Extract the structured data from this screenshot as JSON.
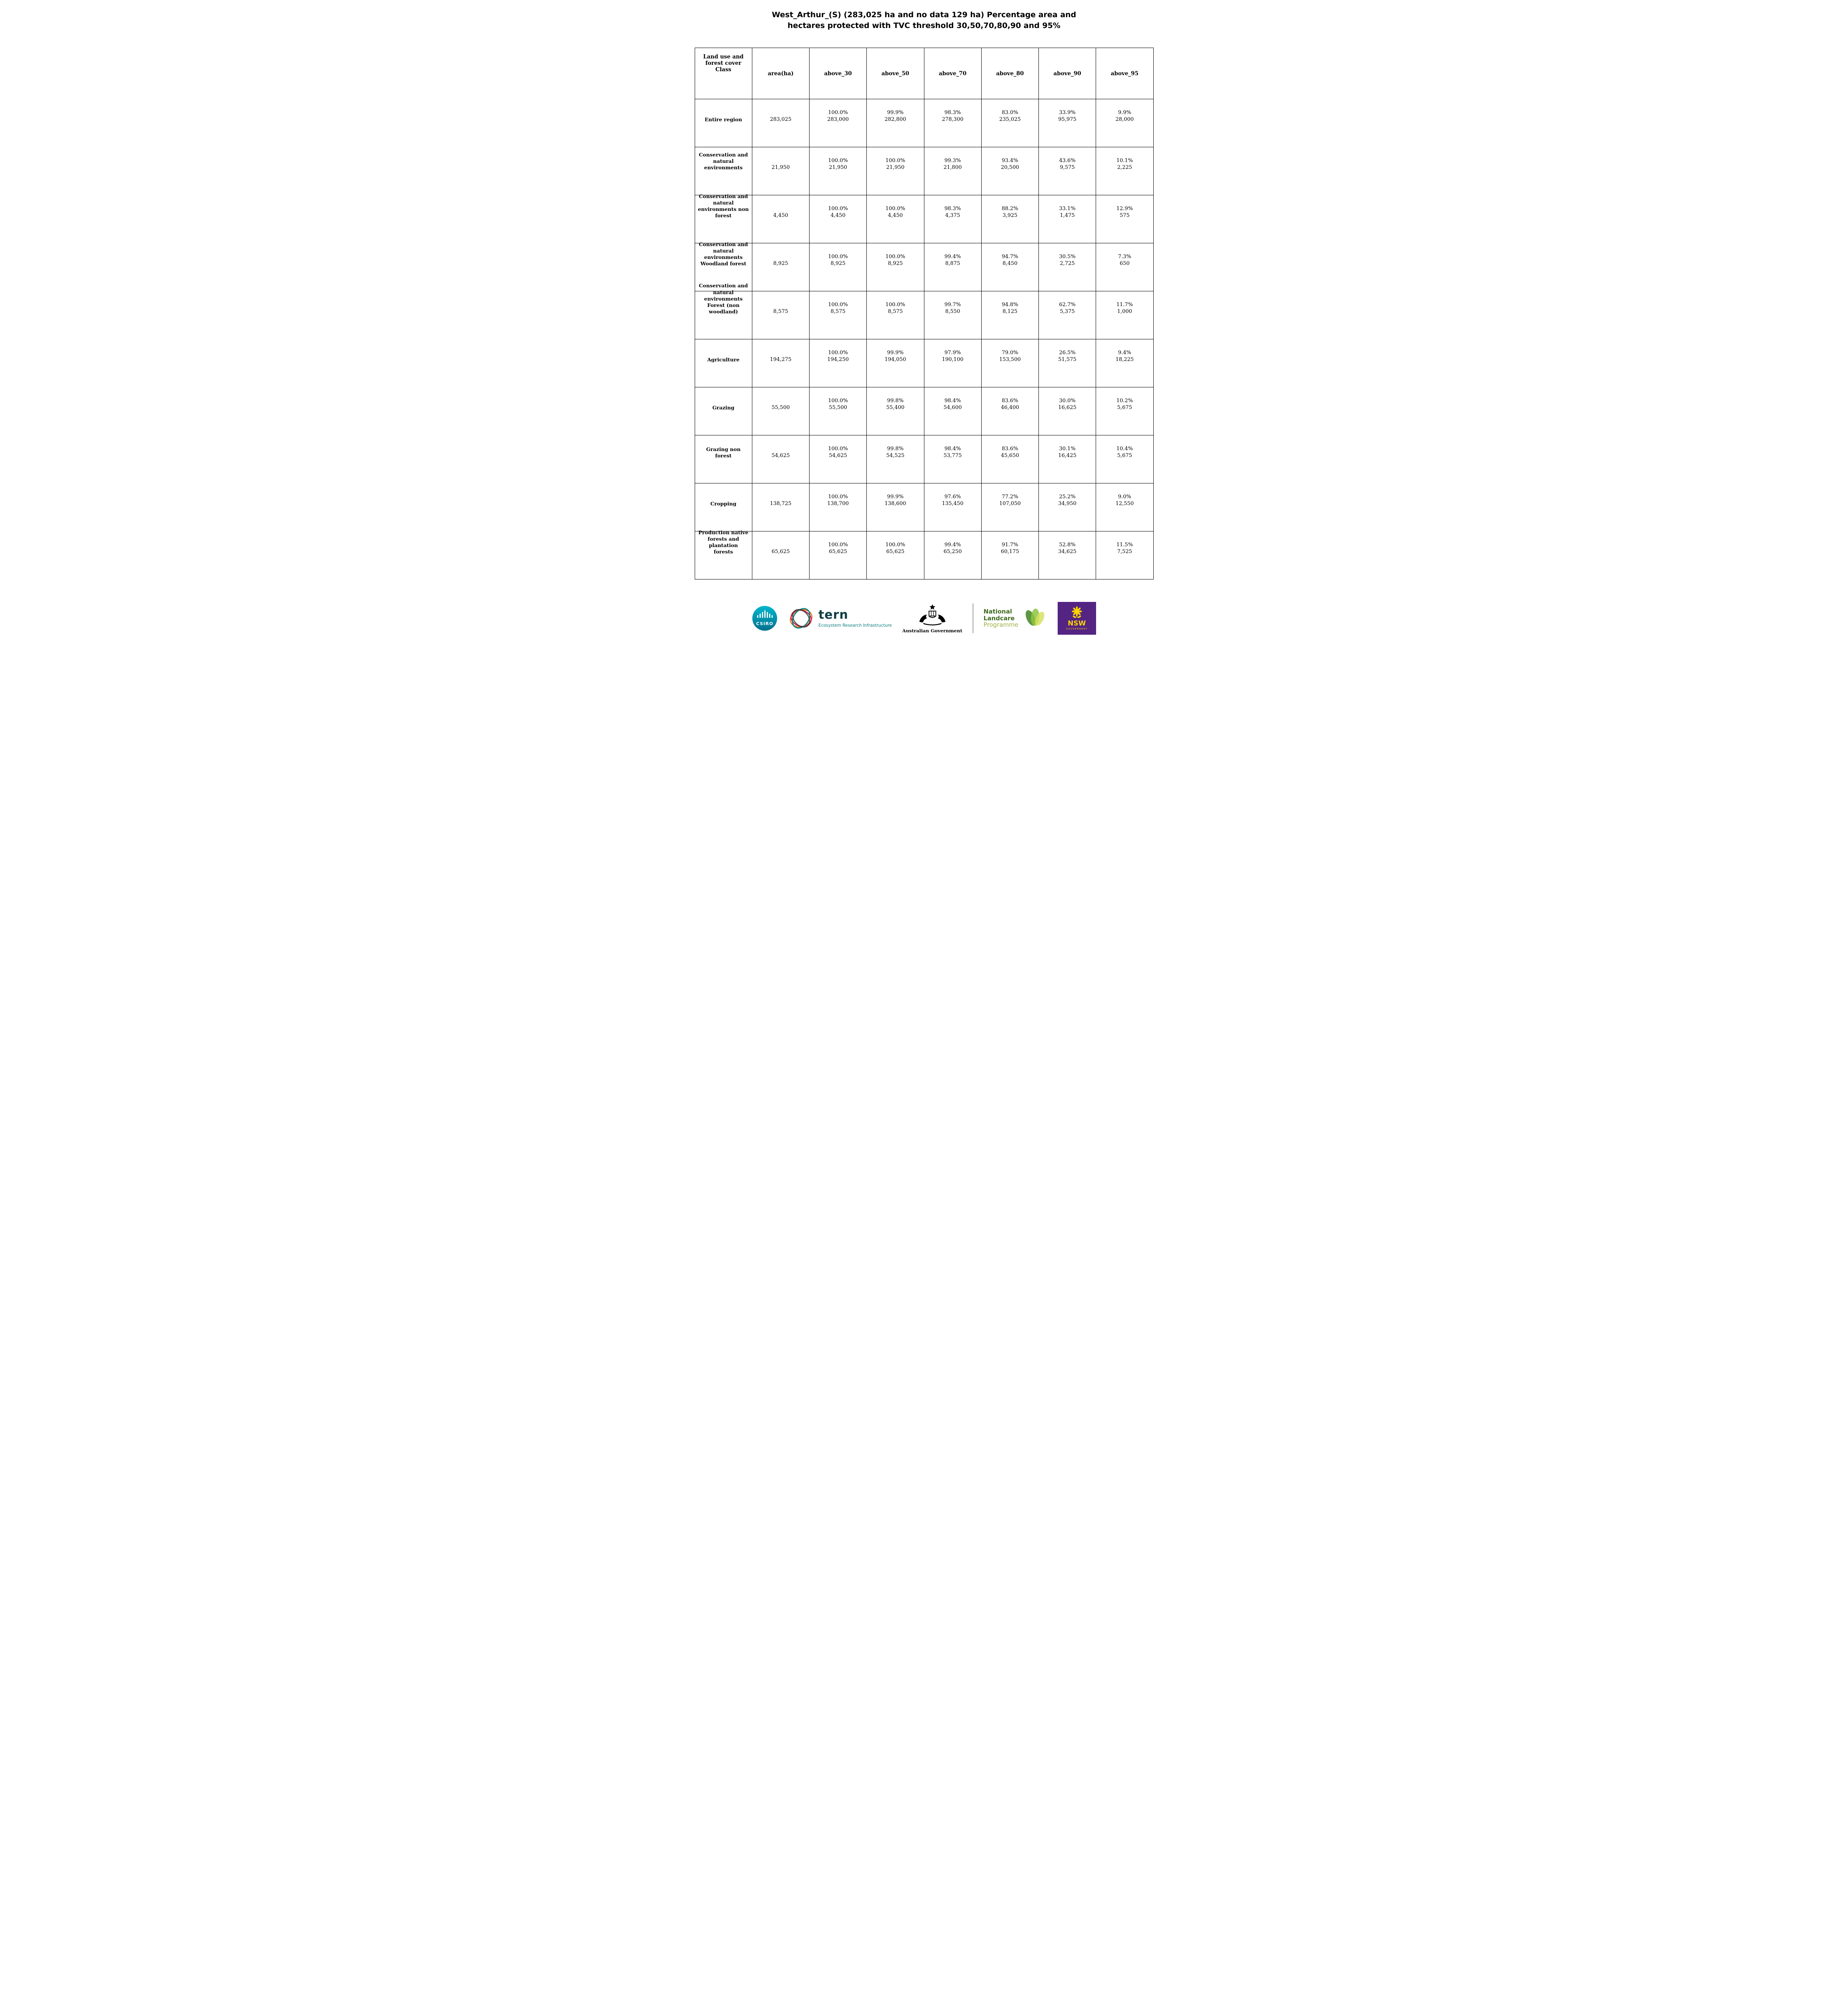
{
  "title": {
    "line1": "West_Arthur_(S) (283,025 ha and no data 129 ha) Percentage area and",
    "line2": "hectares protected with TVC threshold 30,50,70,80,90 and 95%"
  },
  "table": {
    "headers": [
      "Land use and\nforest cover\nClass",
      "area(ha)",
      "above_30",
      "above_50",
      "above_70",
      "above_80",
      "above_90",
      "above_95"
    ],
    "rows": [
      {
        "label": "Entire region",
        "area": "283,025",
        "cells": [
          {
            "pct": "100.0%",
            "ha": "283,000"
          },
          {
            "pct": "99.9%",
            "ha": "282,800"
          },
          {
            "pct": "98.3%",
            "ha": "278,300"
          },
          {
            "pct": "83.0%",
            "ha": "235,025"
          },
          {
            "pct": "33.9%",
            "ha": "95,975"
          },
          {
            "pct": "9.9%",
            "ha": "28,000"
          }
        ]
      },
      {
        "label": "Conservation and\nnatural\nenvironments",
        "area": "21,950",
        "cells": [
          {
            "pct": "100.0%",
            "ha": "21,950"
          },
          {
            "pct": "100.0%",
            "ha": "21,950"
          },
          {
            "pct": "99.3%",
            "ha": "21,800"
          },
          {
            "pct": "93.4%",
            "ha": "20,500"
          },
          {
            "pct": "43.6%",
            "ha": "9,575"
          },
          {
            "pct": "10.1%",
            "ha": "2,225"
          }
        ]
      },
      {
        "label": "Conservation and\nnatural\nenvironments non\nforest",
        "area": "4,450",
        "cells": [
          {
            "pct": "100.0%",
            "ha": "4,450"
          },
          {
            "pct": "100.0%",
            "ha": "4,450"
          },
          {
            "pct": "98.3%",
            "ha": "4,375"
          },
          {
            "pct": "88.2%",
            "ha": "3,925"
          },
          {
            "pct": "33.1%",
            "ha": "1,475"
          },
          {
            "pct": "12.9%",
            "ha": "575"
          }
        ]
      },
      {
        "label": "Conservation and\nnatural\nenvironments\nWoodland forest",
        "area": "8,925",
        "cells": [
          {
            "pct": "100.0%",
            "ha": "8,925"
          },
          {
            "pct": "100.0%",
            "ha": "8,925"
          },
          {
            "pct": "99.4%",
            "ha": "8,875"
          },
          {
            "pct": "94.7%",
            "ha": "8,450"
          },
          {
            "pct": "30.5%",
            "ha": "2,725"
          },
          {
            "pct": "7.3%",
            "ha": "650"
          }
        ]
      },
      {
        "label": "Conservation and\nnatural\nenvironments\nForest (non\nwoodland)",
        "area": "8,575",
        "cells": [
          {
            "pct": "100.0%",
            "ha": "8,575"
          },
          {
            "pct": "100.0%",
            "ha": "8,575"
          },
          {
            "pct": "99.7%",
            "ha": "8,550"
          },
          {
            "pct": "94.8%",
            "ha": "8,125"
          },
          {
            "pct": "62.7%",
            "ha": "5,375"
          },
          {
            "pct": "11.7%",
            "ha": "1,000"
          }
        ]
      },
      {
        "label": "Agriculture",
        "area": "194,275",
        "cells": [
          {
            "pct": "100.0%",
            "ha": "194,250"
          },
          {
            "pct": "99.9%",
            "ha": "194,050"
          },
          {
            "pct": "97.9%",
            "ha": "190,100"
          },
          {
            "pct": "79.0%",
            "ha": "153,500"
          },
          {
            "pct": "26.5%",
            "ha": "51,575"
          },
          {
            "pct": "9.4%",
            "ha": "18,225"
          }
        ]
      },
      {
        "label": "Grazing",
        "area": "55,500",
        "cells": [
          {
            "pct": "100.0%",
            "ha": "55,500"
          },
          {
            "pct": "99.8%",
            "ha": "55,400"
          },
          {
            "pct": "98.4%",
            "ha": "54,600"
          },
          {
            "pct": "83.6%",
            "ha": "46,400"
          },
          {
            "pct": "30.0%",
            "ha": "16,625"
          },
          {
            "pct": "10.2%",
            "ha": "5,675"
          }
        ]
      },
      {
        "label": "Grazing non\nforest",
        "area": "54,625",
        "cells": [
          {
            "pct": "100.0%",
            "ha": "54,625"
          },
          {
            "pct": "99.8%",
            "ha": "54,525"
          },
          {
            "pct": "98.4%",
            "ha": "53,775"
          },
          {
            "pct": "83.6%",
            "ha": "45,650"
          },
          {
            "pct": "30.1%",
            "ha": "16,425"
          },
          {
            "pct": "10.4%",
            "ha": "5,675"
          }
        ]
      },
      {
        "label": "Cropping",
        "area": "138,725",
        "cells": [
          {
            "pct": "100.0%",
            "ha": "138,700"
          },
          {
            "pct": "99.9%",
            "ha": "138,600"
          },
          {
            "pct": "97.6%",
            "ha": "135,450"
          },
          {
            "pct": "77.2%",
            "ha": "107,050"
          },
          {
            "pct": "25.2%",
            "ha": "34,950"
          },
          {
            "pct": "9.0%",
            "ha": "12,550"
          }
        ]
      },
      {
        "label": "Production native\nforests and\nplantation\nforests",
        "area": "65,625",
        "cells": [
          {
            "pct": "100.0%",
            "ha": "65,625"
          },
          {
            "pct": "100.0%",
            "ha": "65,625"
          },
          {
            "pct": "99.4%",
            "ha": "65,250"
          },
          {
            "pct": "91.7%",
            "ha": "60,175"
          },
          {
            "pct": "52.8%",
            "ha": "34,625"
          },
          {
            "pct": "11.5%",
            "ha": "7,525"
          }
        ]
      }
    ]
  },
  "footer": {
    "csiro_label": "CSIRO",
    "tern_label": "tern",
    "tern_tagline": "Ecosystem Research Infrastructure",
    "ausgov_label": "Australian Government",
    "landcare_line1": "National",
    "landcare_line2": "Landcare",
    "landcare_line3": "Programme",
    "nsw_label": "NSW",
    "nsw_sub": "GOVERNMENT"
  },
  "colors": {
    "csiro_teal_top": "#00b7cc",
    "csiro_teal_bottom": "#00708f",
    "tern_dark": "#0e3e44",
    "tern_teal": "#0c7c80",
    "landcare_dark_green": "#3e6b1e",
    "landcare_light_green": "#9bb03e",
    "nsw_purple": "#542483",
    "nsw_yellow": "#ffd400"
  }
}
